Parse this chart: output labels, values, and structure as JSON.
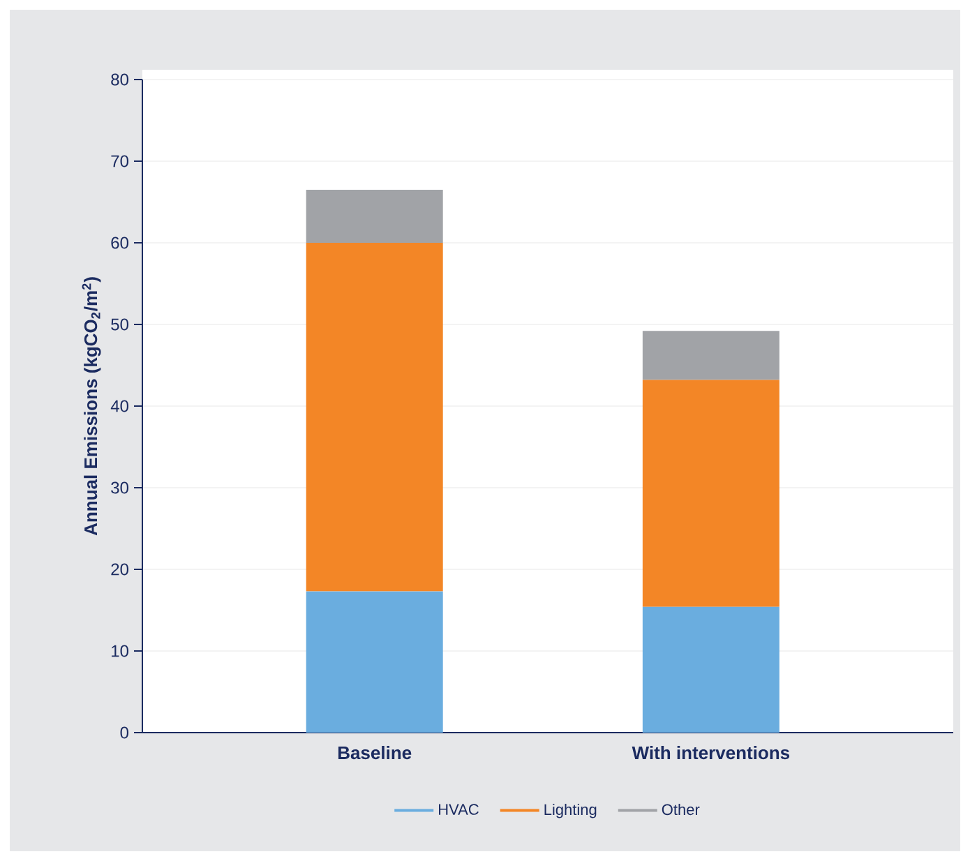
{
  "chart_data": {
    "type": "bar",
    "stacked": true,
    "ylabel": "Annual Emissions (kgCO$_{2}$/m$^{2}$)",
    "categories": [
      "Baseline",
      "With interventions"
    ],
    "series": [
      {
        "name": "HVAC",
        "color": "#6aaddf",
        "values": [
          17.3,
          15.4
        ]
      },
      {
        "name": "Lighting",
        "color": "#f38626",
        "values": [
          42.7,
          27.8
        ]
      },
      {
        "name": "Other",
        "color": "#a1a3a7",
        "values": [
          6.5,
          6.0
        ]
      }
    ],
    "ylim": [
      0,
      80
    ],
    "yticks": [
      0,
      10,
      20,
      30,
      40,
      50,
      60,
      70,
      80
    ],
    "grid": "y",
    "legend": "bottom"
  }
}
